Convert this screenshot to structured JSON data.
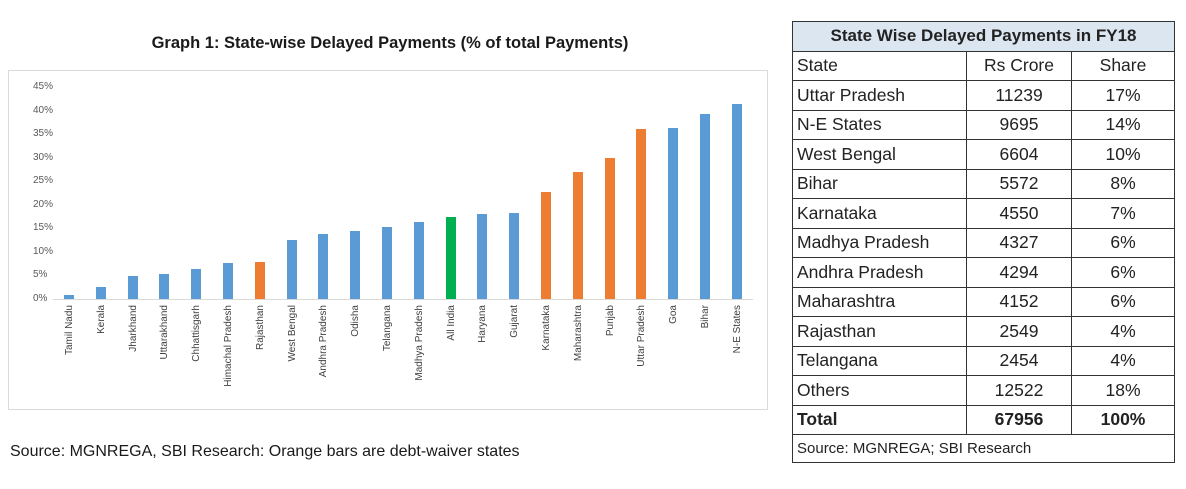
{
  "chart": {
    "title": "Graph 1: State-wise Delayed Payments (% of total Payments)",
    "source_note": "Source:  MGNREGA, SBI Research: Orange bars are debt-waiver states",
    "yticks": [
      "45%",
      "40%",
      "35%",
      "30%",
      "25%",
      "20%",
      "15%",
      "10%",
      "5%",
      "0%"
    ],
    "colors": {
      "normal": "#5b9bd5",
      "debt_waiver": "#ed7d31",
      "all_india": "#00b050"
    }
  },
  "chart_data": {
    "type": "bar",
    "title": "Graph 1: State-wise Delayed Payments (% of total Payments)",
    "xlabel": "",
    "ylabel": "",
    "ylim": [
      0,
      45
    ],
    "grid": false,
    "legend": "none",
    "categories": [
      "Tamil Nadu",
      "Kerala",
      "Jharkhand",
      "Uttarakhand",
      "Chhattisgarh",
      "Himachal Pradesh",
      "Rajasthan",
      "West Bengal",
      "Andhra Pradesh",
      "Odisha",
      "Telangana",
      "Madhya Pradesh",
      "All India",
      "Haryana",
      "Gujarat",
      "Karnataka",
      "Maharashtra",
      "Punjab",
      "Uttar Pradesh",
      "Goa",
      "Bihar",
      "N-E States"
    ],
    "values": [
      0.8,
      2.6,
      4.8,
      5.4,
      6.4,
      7.7,
      7.8,
      12.5,
      13.7,
      14.4,
      15.3,
      16.3,
      17.5,
      18.0,
      18.2,
      22.8,
      27.0,
      30.0,
      36.0,
      36.2,
      39.3,
      41.4
    ],
    "bar_groups": [
      "normal",
      "normal",
      "normal",
      "normal",
      "normal",
      "normal",
      "debt_waiver",
      "normal",
      "normal",
      "normal",
      "normal",
      "normal",
      "all_india",
      "normal",
      "normal",
      "debt_waiver",
      "debt_waiver",
      "debt_waiver",
      "debt_waiver",
      "normal",
      "normal",
      "normal"
    ],
    "annotations": [
      "Orange bars are debt-waiver states"
    ]
  },
  "table": {
    "title": "State Wise Delayed Payments in FY18",
    "headers": [
      "State",
      "Rs Crore",
      "Share"
    ],
    "rows": [
      [
        "Uttar Pradesh",
        "11239",
        "17%"
      ],
      [
        "N-E States",
        "9695",
        "14%"
      ],
      [
        "West Bengal",
        "6604",
        "10%"
      ],
      [
        "Bihar",
        "5572",
        "8%"
      ],
      [
        "Karnataka",
        "4550",
        "7%"
      ],
      [
        "Madhya Pradesh",
        "4327",
        "6%"
      ],
      [
        "Andhra Pradesh",
        "4294",
        "6%"
      ],
      [
        "Maharashtra",
        "4152",
        "6%"
      ],
      [
        "Rajasthan",
        "2549",
        "4%"
      ],
      [
        "Telangana",
        "2454",
        "4%"
      ],
      [
        "Others",
        "12522",
        "18%"
      ]
    ],
    "total": [
      "Total",
      "67956",
      "100%"
    ],
    "source": "Source: MGNREGA; SBI Research"
  }
}
